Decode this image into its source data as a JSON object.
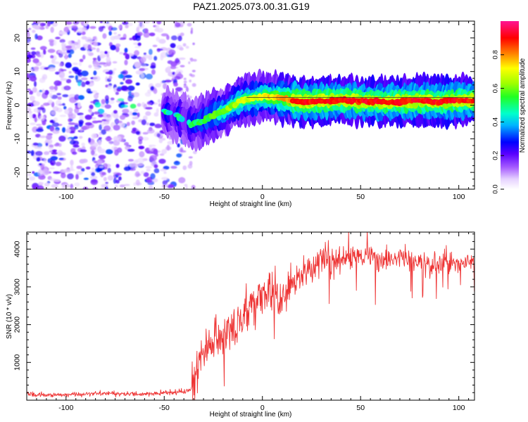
{
  "title": "PAZ1.2025.073.00.31.G19",
  "chart_data": [
    {
      "type": "heatmap",
      "xlabel": "Height of straight line (km)",
      "ylabel": "Frequency (Hz)",
      "xlim": [
        -120,
        108
      ],
      "ylim": [
        -25,
        25
      ],
      "xticks": [
        -100,
        -50,
        0,
        50,
        100
      ],
      "yticks": [
        -20,
        -10,
        0,
        10,
        20
      ],
      "colorbar": {
        "label": "Normalized spectral amplitude",
        "range": [
          0,
          1
        ],
        "ticks": [
          0.0,
          0.2,
          0.4,
          0.6,
          0.8
        ],
        "tick_labels": [
          "0.0",
          "0.2",
          "0.4",
          "0.6",
          "0.8"
        ],
        "colormap": "rainbow (white to violet, blue, cyan, green, yellow, red, magenta)"
      },
      "ridge": {
        "description": "Dominant frequency track",
        "points_height_km": [
          -50,
          -45,
          -40,
          -36,
          -30,
          -25,
          -20,
          -15,
          -10,
          -5,
          0,
          5,
          10,
          20,
          30,
          40,
          50,
          60,
          70,
          80,
          90,
          100,
          108
        ],
        "points_frequency_hz": [
          -2,
          -3,
          -4,
          -6,
          -4.5,
          -3,
          -2,
          0,
          1.5,
          2,
          2.5,
          2.3,
          2,
          1,
          1.2,
          1.5,
          1.2,
          1,
          1,
          1.3,
          1,
          1.4,
          1.5
        ],
        "peak_amplitude": 0.9
      },
      "noise_region_km": [
        -120,
        -40
      ]
    },
    {
      "type": "line",
      "xlabel": "Height of straight line (km)",
      "ylabel": "SNR (10 * v/v)",
      "xlim": [
        -120,
        108
      ],
      "ylim": [
        0,
        4450
      ],
      "xticks": [
        -100,
        -50,
        0,
        50,
        100
      ],
      "yticks": [
        1000,
        2000,
        3000,
        4000
      ],
      "series_color": "#ee3333",
      "series": [
        {
          "x": [
            -120,
            -100,
            -80,
            -60,
            -50,
            -40,
            -36,
            -33,
            -31,
            -28,
            -25,
            -20,
            -15,
            -10,
            -5,
            0,
            5,
            10,
            15,
            20,
            25,
            30,
            35,
            40,
            50,
            60,
            70,
            80,
            90,
            100,
            108
          ],
          "values": [
            150,
            140,
            180,
            160,
            200,
            230,
            300,
            800,
            1200,
            1500,
            1600,
            1700,
            1900,
            2200,
            2500,
            2800,
            2900,
            2700,
            3100,
            3300,
            3500,
            3700,
            3700,
            3800,
            3800,
            3700,
            3750,
            3650,
            3600,
            3650,
            3700
          ]
        }
      ]
    }
  ]
}
